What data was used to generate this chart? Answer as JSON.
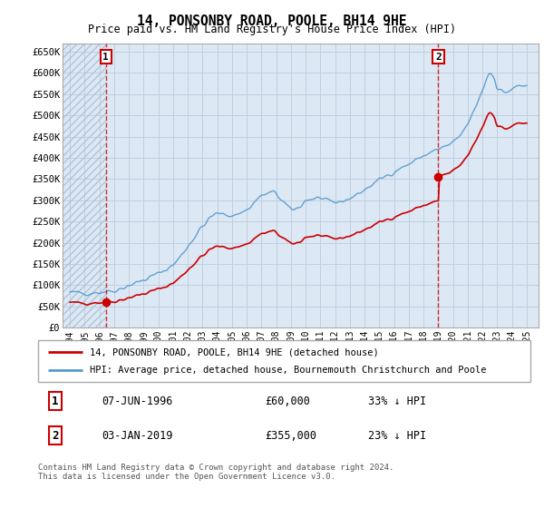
{
  "title": "14, PONSONBY ROAD, POOLE, BH14 9HE",
  "subtitle": "Price paid vs. HM Land Registry's House Price Index (HPI)",
  "ylim": [
    0,
    670000
  ],
  "yticks": [
    0,
    50000,
    100000,
    150000,
    200000,
    250000,
    300000,
    350000,
    400000,
    450000,
    500000,
    550000,
    600000,
    650000
  ],
  "ytick_labels": [
    "£0",
    "£50K",
    "£100K",
    "£150K",
    "£200K",
    "£250K",
    "£300K",
    "£350K",
    "£400K",
    "£450K",
    "£500K",
    "£550K",
    "£600K",
    "£650K"
  ],
  "hpi_color": "#5599cc",
  "price_color": "#cc0000",
  "sale1_year": 1996.44,
  "sale1_price": 60000,
  "sale2_year": 2019.0,
  "sale2_price": 355000,
  "sale1_date": "07-JUN-1996",
  "sale1_price_str": "£60,000",
  "sale1_hpi": "33% ↓ HPI",
  "sale2_date": "03-JAN-2019",
  "sale2_price_str": "£355,000",
  "sale2_hpi": "23% ↓ HPI",
  "legend_line1": "14, PONSONBY ROAD, POOLE, BH14 9HE (detached house)",
  "legend_line2": "HPI: Average price, detached house, Bournemouth Christchurch and Poole",
  "footer": "Contains HM Land Registry data © Crown copyright and database right 2024.\nThis data is licensed under the Open Government Licence v3.0.",
  "background_color": "#ffffff",
  "plot_bg_color": "#dde8f5",
  "hatch_color": "#b0c4d8",
  "grid_color": "#c8d8e8"
}
